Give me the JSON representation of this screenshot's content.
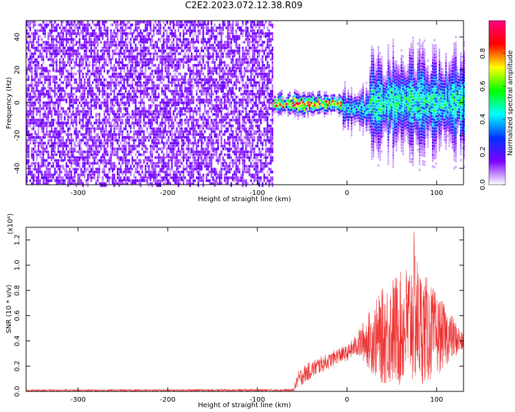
{
  "title": "C2E2.2023.072.12.38.R09",
  "chart_data": [
    {
      "type": "heatmap",
      "xlabel": "Height of straight line (km)",
      "ylabel": "Frequency (Hz)",
      "xlim": [
        -358,
        130
      ],
      "ylim": [
        -50,
        50
      ],
      "xticks": [
        -300,
        -200,
        -100,
        0,
        100
      ],
      "yticks": [
        -40,
        -20,
        0,
        20,
        40
      ],
      "colorbar": {
        "label": "Normalized spectral amplitude",
        "range": [
          0,
          1
        ],
        "ticks": [
          "0.0",
          "0.2",
          "0.4",
          "0.6",
          "0.8"
        ],
        "colors": [
          "#ffffff",
          "#7c00ff",
          "#0033ff",
          "#00ffff",
          "#00ff00",
          "#ffff00",
          "#ff0000",
          "#ff0080"
        ]
      },
      "regions": [
        {
          "x": [
            -358,
            -83
          ],
          "kind": "broadband-noise",
          "y": [
            -50,
            50
          ]
        },
        {
          "x": [
            -83,
            -5
          ],
          "kind": "narrow-line",
          "center": 0,
          "width": 6,
          "peak": 0.85
        },
        {
          "x": [
            -5,
            25
          ],
          "kind": "narrow-line",
          "center": -3,
          "width": 12,
          "peak": 0.45
        },
        {
          "x": [
            25,
            130
          ],
          "kind": "broad-line",
          "center": 1,
          "width": 30,
          "peak": 0.5
        }
      ]
    },
    {
      "type": "line",
      "xlabel": "Height of straight line (km)",
      "ylabel": "SNR (10 * v/v)",
      "multiplier": "(x10⁴)",
      "color": "#ee2e2e",
      "xlim": [
        -358,
        130
      ],
      "ylim": [
        0,
        1.3
      ],
      "xticks": [
        -300,
        -200,
        -100,
        0,
        100
      ],
      "yticks": [
        "0.0",
        "0.2",
        "0.4",
        "0.6",
        "0.8",
        "1.0",
        "1.2"
      ],
      "envelope": {
        "x": [
          -358,
          -60,
          -55,
          -50,
          -40,
          -30,
          -20,
          -10,
          0,
          10,
          20,
          30,
          40,
          50,
          60,
          70,
          75,
          80,
          90,
          100,
          110,
          120,
          130
        ],
        "low": [
          0.0,
          0.0,
          0.03,
          0.05,
          0.1,
          0.14,
          0.18,
          0.22,
          0.24,
          0.28,
          0.22,
          0.12,
          0.05,
          0.04,
          0.03,
          0.05,
          0.04,
          0.05,
          0.06,
          0.12,
          0.2,
          0.26,
          0.32
        ],
        "high": [
          0.015,
          0.02,
          0.15,
          0.2,
          0.24,
          0.28,
          0.3,
          0.35,
          0.36,
          0.45,
          0.58,
          0.7,
          0.82,
          0.92,
          0.95,
          1.05,
          1.28,
          1.0,
          0.9,
          0.78,
          0.68,
          0.58,
          0.45
        ]
      }
    }
  ]
}
